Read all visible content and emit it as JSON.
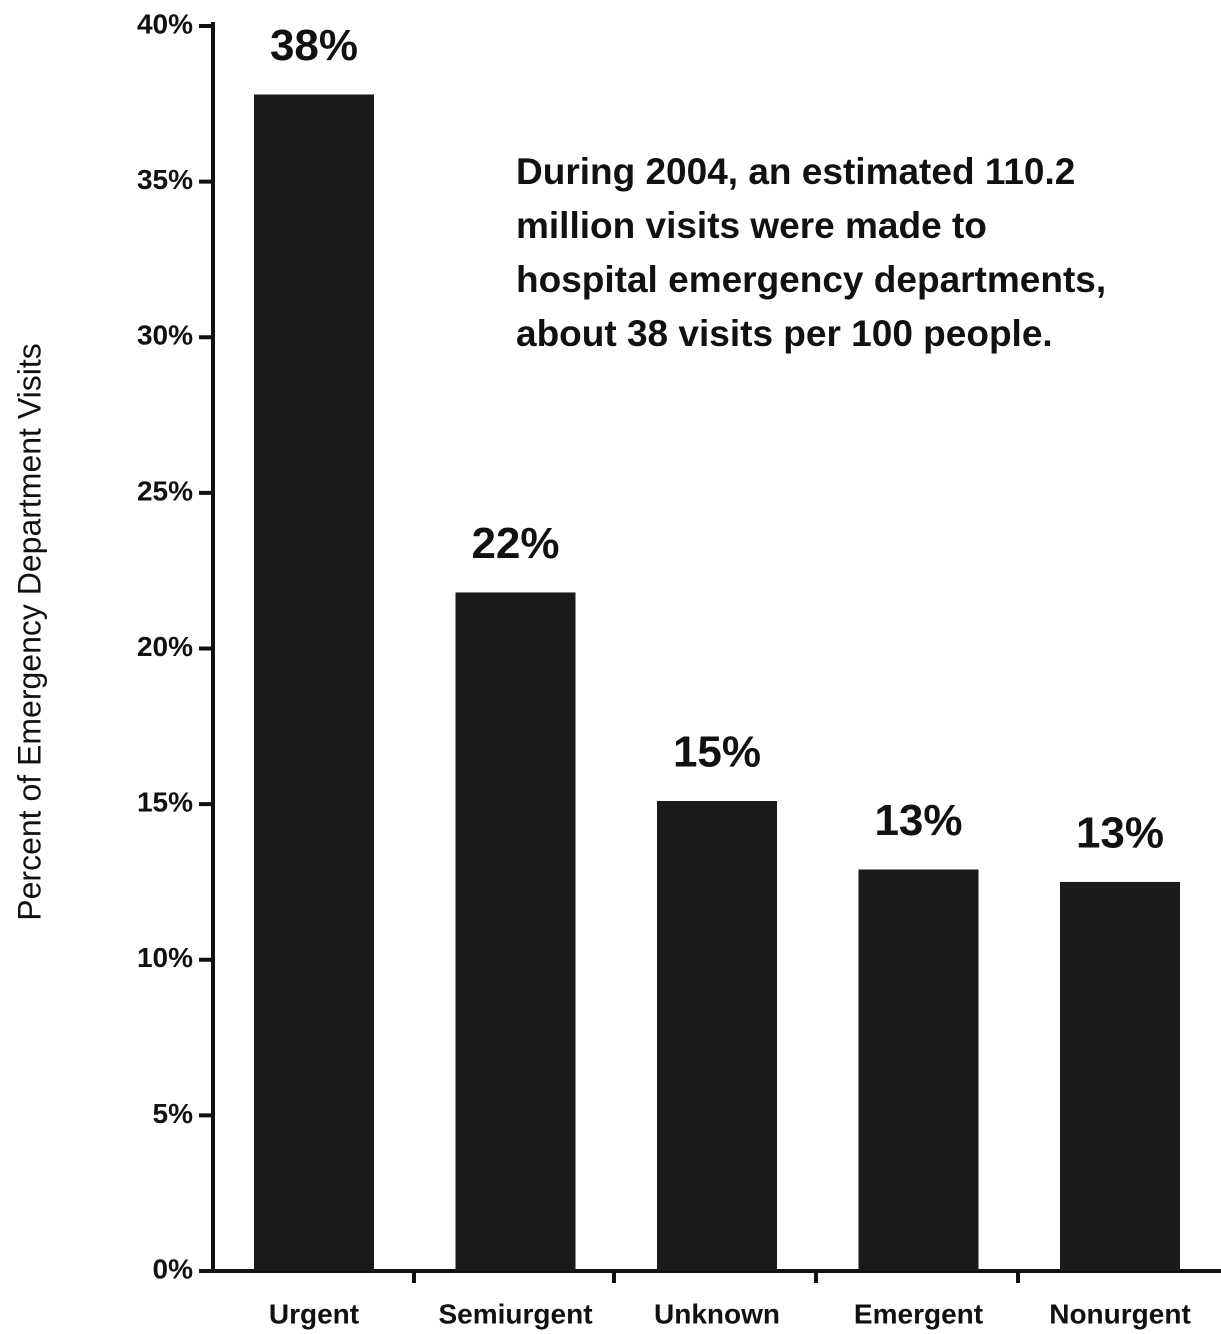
{
  "chart_data": {
    "type": "bar",
    "y_label": "Percent of Emergency Department Visits",
    "annotation": [
      "During 2004, an estimated 110.2",
      "million visits were made to",
      "hospital emergency departments,",
      "about 38 visits per 100 people."
    ],
    "categories": [
      "Urgent",
      "Semiurgent",
      "Unknown",
      "Emergent",
      "Nonurgent"
    ],
    "values": [
      37.8,
      21.8,
      15.1,
      12.9,
      12.5
    ],
    "value_labels": [
      "38%",
      "22%",
      "15%",
      "13%",
      "13%"
    ],
    "color": "#1a1a1a",
    "ylim": [
      0,
      40
    ],
    "yticks": [
      {
        "value": 0,
        "label": "0%"
      },
      {
        "value": 5,
        "label": "5%"
      },
      {
        "value": 10,
        "label": "10%"
      },
      {
        "value": 15,
        "label": "15%"
      },
      {
        "value": 20,
        "label": "20%"
      },
      {
        "value": 25,
        "label": "25%"
      },
      {
        "value": 30,
        "label": "30%"
      },
      {
        "value": 35,
        "label": "35%"
      },
      {
        "value": 40,
        "label": "40%"
      }
    ],
    "grid": false
  }
}
